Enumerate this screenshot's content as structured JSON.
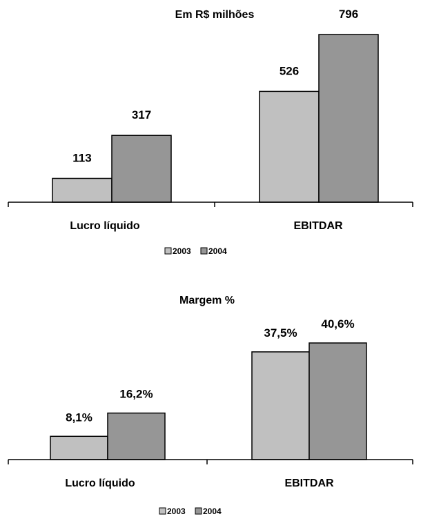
{
  "colors": {
    "series_2003": "#c0c0c0",
    "series_2004": "#969696",
    "axis": "#000000",
    "background": "#ffffff"
  },
  "chart_data": [
    {
      "type": "bar",
      "title": "Em R$ milhões",
      "xlabel": "",
      "ylabel": "",
      "categories": [
        "Lucro líquido",
        "EBITDAR"
      ],
      "series": [
        {
          "name": "2003",
          "values": [
            113,
            526
          ],
          "labels": [
            "113",
            "526"
          ]
        },
        {
          "name": "2004",
          "values": [
            317,
            796
          ],
          "labels": [
            "317",
            "796"
          ]
        }
      ],
      "ylim": [
        0,
        796
      ],
      "grid": false,
      "legend": "bottom"
    },
    {
      "type": "bar",
      "title": "Margem %",
      "xlabel": "",
      "ylabel": "",
      "categories": [
        "Lucro líquido",
        "EBITDAR"
      ],
      "series": [
        {
          "name": "2003",
          "values": [
            8.1,
            37.5
          ],
          "labels": [
            "8,1%",
            "37,5%"
          ]
        },
        {
          "name": "2004",
          "values": [
            16.2,
            40.6
          ],
          "labels": [
            "16,2%",
            "40,6%"
          ]
        }
      ],
      "ylim": [
        0,
        40.6
      ],
      "grid": false,
      "legend": "bottom"
    }
  ]
}
